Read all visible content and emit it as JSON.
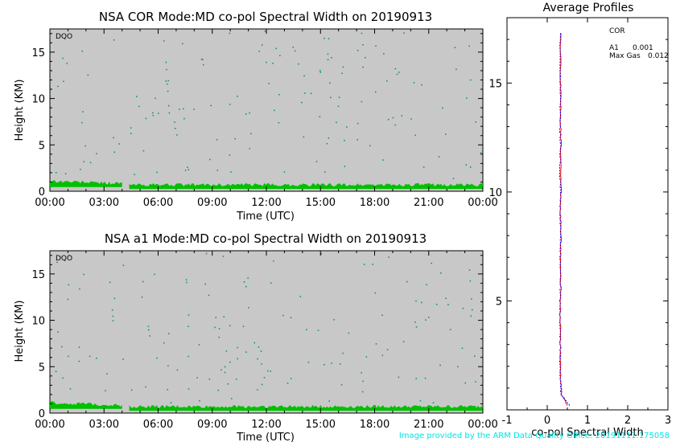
{
  "colors": {
    "panel_bg": "#c8c8c8",
    "echo": "#00c000",
    "noise": "#009060",
    "cor_line": "#0000ff",
    "a1_line": "#ff0000",
    "cor_label": "#0000ff",
    "a1_label": "#ff4000",
    "maxgas_label": "#000000",
    "footer": "#00e5e5"
  },
  "footer_text": "Image provided by the ARM Data Quality Office: 20191111.175058",
  "chart_data": [
    {
      "type": "heatmap",
      "title": "NSA COR  Mode:MD  co-pol Spectral Width  on 20190913",
      "tag": "DQO",
      "xlabel": "Time (UTC)",
      "ylabel": "Height (KM)",
      "xlim": [
        0,
        24
      ],
      "ylim": [
        0,
        17.5
      ],
      "x_ticks": [
        0,
        3,
        6,
        9,
        12,
        15,
        18,
        21,
        24
      ],
      "x_tick_labels": [
        "00:00",
        "03:00",
        "06:00",
        "09:00",
        "12:00",
        "15:00",
        "18:00",
        "21:00",
        "00:00"
      ],
      "y_ticks": [
        0,
        5,
        10,
        15
      ],
      "y_tick_labels": [
        "0",
        "5",
        "10",
        "15"
      ],
      "echo_layer": [
        {
          "x_start": 0.0,
          "x_end": 4.0,
          "top_km": 1.1,
          "bottom_km": 0.45
        },
        {
          "x_start": 4.4,
          "x_end": 24.0,
          "top_km": 0.7,
          "bottom_km": 0.25
        }
      ],
      "noise": "scattered isolated pixels at all heights"
    },
    {
      "type": "heatmap",
      "title": "NSA a1   Mode:MD   co-pol Spectral Width   on 20190913",
      "tag": "DQO",
      "xlabel": "Time (UTC)",
      "ylabel": "Height (KM)",
      "xlim": [
        0,
        24
      ],
      "ylim": [
        0,
        17.5
      ],
      "x_ticks": [
        0,
        3,
        6,
        9,
        12,
        15,
        18,
        21,
        24
      ],
      "x_tick_labels": [
        "00:00",
        "03:00",
        "06:00",
        "09:00",
        "12:00",
        "15:00",
        "18:00",
        "21:00",
        "00:00"
      ],
      "y_ticks": [
        0,
        5,
        10,
        15
      ],
      "y_tick_labels": [
        "0",
        "5",
        "10",
        "15"
      ],
      "echo_layer": [
        {
          "x_start": 0.0,
          "x_end": 4.0,
          "top_km": 1.1,
          "bottom_km": 0.45
        },
        {
          "x_start": 4.4,
          "x_end": 24.0,
          "top_km": 0.7,
          "bottom_km": 0.25
        }
      ],
      "noise": "scattered isolated pixels at all heights"
    },
    {
      "type": "line",
      "title": "Average Profiles",
      "xlabel": "co-pol Spectral Width",
      "ylabel": "",
      "xlim": [
        -1,
        3
      ],
      "ylim": [
        0,
        18
      ],
      "x_ticks": [
        -1,
        0,
        1,
        2,
        3
      ],
      "x_tick_labels": [
        "-1",
        "0",
        "1",
        "2",
        "3"
      ],
      "y_ticks": [
        5,
        10,
        15
      ],
      "y_tick_labels": [
        "5",
        "10",
        "15"
      ],
      "legend": {
        "cor_label": "COR",
        "a1_label": "A1",
        "a1_value": "0.001",
        "maxgas_label": "Max Gas",
        "maxgas_value": "0.012"
      },
      "series": [
        {
          "name": "COR",
          "x": [
            0.55,
            0.35,
            0.33,
            0.32,
            0.32,
            0.31,
            0.32,
            0.33,
            0.32,
            0.33,
            0.32,
            0.33,
            0.32,
            0.33,
            0.32,
            0.33,
            0.32,
            0.33
          ],
          "y": [
            0.2,
            0.7,
            1.2,
            2.0,
            3.0,
            4.0,
            5.0,
            6.0,
            7.0,
            8.0,
            9.0,
            10.0,
            11.0,
            12.0,
            13.0,
            14.0,
            15.0,
            17.3
          ]
        },
        {
          "name": "A1",
          "x": [
            0.5,
            0.36,
            0.34,
            0.33,
            0.33,
            0.32,
            0.33,
            0.34,
            0.33,
            0.34,
            0.33,
            0.34,
            0.33,
            0.34,
            0.33,
            0.34,
            0.33,
            0.34
          ],
          "y": [
            0.2,
            0.7,
            1.2,
            2.0,
            3.0,
            4.0,
            5.0,
            6.0,
            7.0,
            8.0,
            9.0,
            10.0,
            11.0,
            12.0,
            13.0,
            14.0,
            15.0,
            17.3
          ]
        }
      ]
    }
  ]
}
